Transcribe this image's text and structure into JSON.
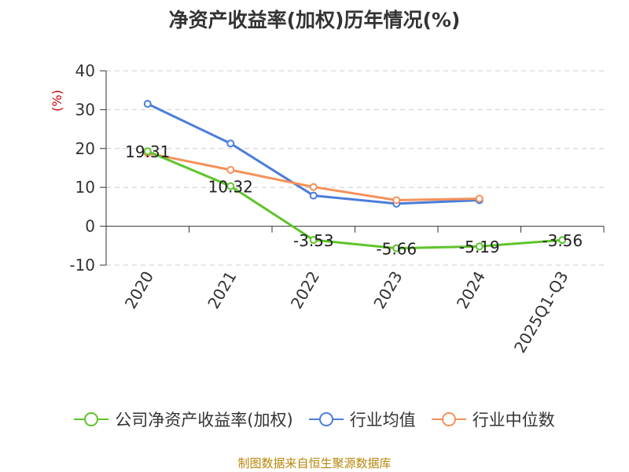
{
  "chart_data": {
    "type": "line",
    "title": "净资产收益率(加权)历年情况(%)",
    "ylabel": "(%)",
    "ylim": [
      -10,
      40
    ],
    "yticks": [
      -10,
      0,
      10,
      20,
      30,
      40
    ],
    "categories": [
      "2020",
      "2021",
      "2022",
      "2023",
      "2024",
      "2025Q1-Q3"
    ],
    "grid": true,
    "legend_position": "bottom",
    "series": [
      {
        "name": "公司净资产收益率(加权)",
        "color": "#5fc42b",
        "values": [
          19.31,
          10.32,
          -3.53,
          -5.66,
          -5.19,
          -3.56
        ],
        "data_labels": [
          "19.31",
          "10.32",
          "-3.53",
          "-5.66",
          "-5.19",
          "-3.56"
        ]
      },
      {
        "name": "行业均值",
        "color": "#4a7ddb",
        "values": [
          31.5,
          21.3,
          7.9,
          5.8,
          6.7,
          null
        ]
      },
      {
        "name": "行业中位数",
        "color": "#f5915a",
        "values": [
          18.8,
          14.5,
          10.1,
          6.7,
          7.1,
          null
        ]
      }
    ]
  },
  "source": "制图数据来自恒生聚源数据库"
}
